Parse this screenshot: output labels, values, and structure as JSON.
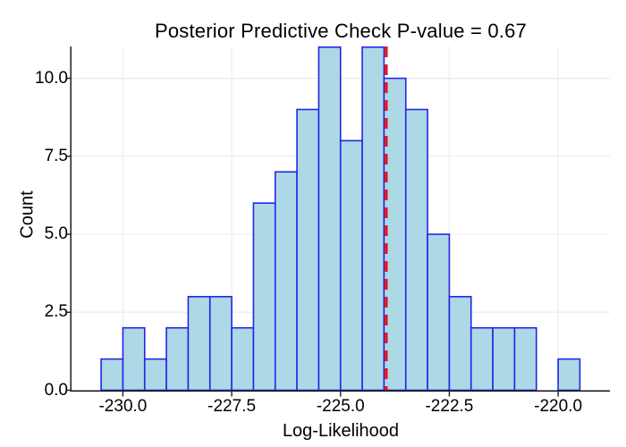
{
  "chart_data": {
    "type": "histogram",
    "title": "Posterior Predictive Check P-value = 0.67",
    "p_value_shown_in_title": "0.67",
    "xlabel": "Log-Likelihood",
    "ylabel": "Count",
    "bin_start": -230.5,
    "bin_width": 0.5,
    "counts": [
      1,
      2,
      1,
      2,
      3,
      3,
      2,
      6,
      7,
      9,
      11,
      8,
      11,
      10,
      9,
      5,
      3,
      2,
      2,
      2,
      0,
      1
    ],
    "x_ticks": [
      -230.0,
      -227.5,
      -225.0,
      -222.5,
      -220.0
    ],
    "x_tick_labels": [
      "-230.0",
      "-227.5",
      "-225.0",
      "-222.5",
      "-220.0"
    ],
    "y_ticks": [
      0.0,
      2.5,
      5.0,
      7.5,
      10.0
    ],
    "y_tick_labels": [
      "0.0",
      "2.5",
      "5.0",
      "7.5",
      "10.0"
    ],
    "xlim": [
      -231.18,
      -218.81
    ],
    "ylim": [
      0,
      11.02
    ],
    "observed_line_x": -223.95,
    "observed_line_style": "dashed",
    "grid": true,
    "legend": "none",
    "colors": {
      "bar_fill": "#add8e6",
      "bar_edge": "#2424e8",
      "vline": "#f01212",
      "grid": "#ececec",
      "spine": "#1c1c1c",
      "text": "#000000",
      "background": "#ffffff"
    }
  }
}
